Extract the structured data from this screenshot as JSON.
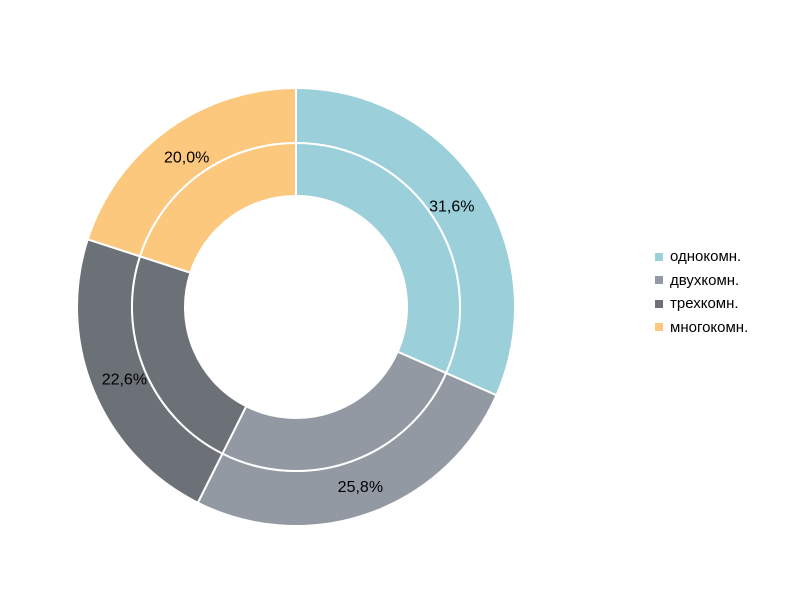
{
  "chart_data": {
    "type": "pie",
    "subtype": "donut",
    "rings": 2,
    "categories": [
      "однокомн.",
      "двухкомн.",
      "трехкомн.",
      "многокомн."
    ],
    "values": [
      31.6,
      25.8,
      22.6,
      20.0
    ],
    "value_labels": [
      "31,6%",
      "25,8%",
      "22,6%",
      "20,0%"
    ],
    "colors": [
      "#9BCFD9",
      "#9399A3",
      "#6C7177",
      "#FCC87D"
    ],
    "legend_position": "right",
    "start_angle": "top",
    "direction": "clockwise",
    "title": ""
  }
}
